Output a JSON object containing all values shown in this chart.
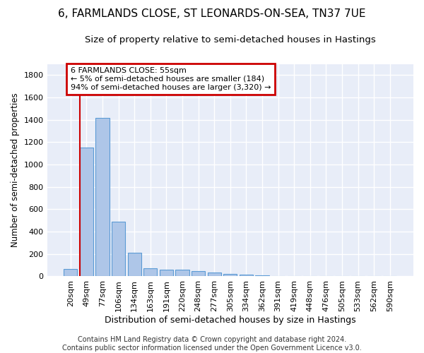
{
  "title": "6, FARMLANDS CLOSE, ST LEONARDS-ON-SEA, TN37 7UE",
  "subtitle": "Size of property relative to semi-detached houses in Hastings",
  "xlabel": "Distribution of semi-detached houses by size in Hastings",
  "ylabel": "Number of semi-detached properties",
  "categories": [
    "20sqm",
    "49sqm",
    "77sqm",
    "106sqm",
    "134sqm",
    "163sqm",
    "191sqm",
    "220sqm",
    "248sqm",
    "277sqm",
    "305sqm",
    "334sqm",
    "362sqm",
    "391sqm",
    "419sqm",
    "448sqm",
    "476sqm",
    "505sqm",
    "533sqm",
    "562sqm",
    "590sqm"
  ],
  "values": [
    68,
    1150,
    1415,
    490,
    210,
    72,
    58,
    58,
    45,
    35,
    22,
    15,
    10,
    5,
    0,
    0,
    0,
    0,
    0,
    0,
    0
  ],
  "bar_color": "#aec6e8",
  "bar_edge_color": "#5b9bd5",
  "annotation_box_text": "6 FARMLANDS CLOSE: 55sqm\n← 5% of semi-detached houses are smaller (184)\n94% of semi-detached houses are larger (3,320) →",
  "ylim": [
    0,
    1900
  ],
  "yticks": [
    0,
    200,
    400,
    600,
    800,
    1000,
    1200,
    1400,
    1600,
    1800
  ],
  "ax_background_color": "#e8edf8",
  "grid_color": "#ffffff",
  "red_line_color": "#cc0000",
  "annotation_edge_color": "#cc0000",
  "footer": "Contains HM Land Registry data © Crown copyright and database right 2024.\nContains public sector information licensed under the Open Government Licence v3.0.",
  "title_fontsize": 11,
  "subtitle_fontsize": 9.5,
  "xlabel_fontsize": 9,
  "ylabel_fontsize": 8.5,
  "tick_fontsize": 8,
  "footer_fontsize": 7,
  "annotation_fontsize": 8
}
